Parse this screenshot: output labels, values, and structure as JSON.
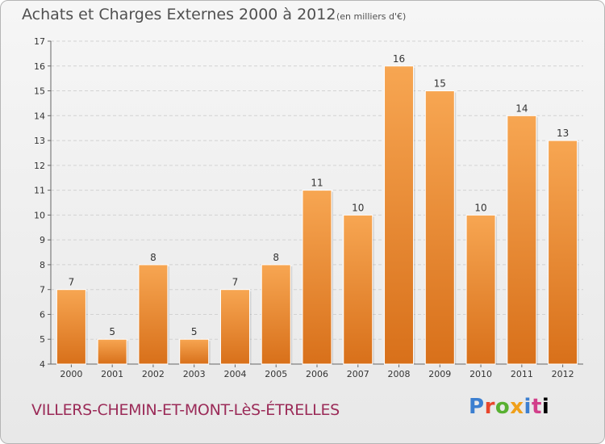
{
  "header": {
    "title": "Achats et Charges Externes 2000 à 2012",
    "unit": "(en milliers d'€)"
  },
  "footer": {
    "commune": "VILLERS-CHEMIN-ET-MONT-LèS-ÉTRELLES",
    "brand": "Proxiti",
    "brand_letters": [
      "P",
      "r",
      "o",
      "x",
      "i",
      "t",
      "i"
    ]
  },
  "chart_data": {
    "type": "bar",
    "categories": [
      "2000",
      "2001",
      "2002",
      "2003",
      "2004",
      "2005",
      "2006",
      "2007",
      "2008",
      "2009",
      "2010",
      "2011",
      "2012"
    ],
    "values": [
      7,
      5,
      8,
      5,
      7,
      8,
      11,
      10,
      16,
      15,
      10,
      14,
      13
    ],
    "ylim": [
      4,
      17
    ],
    "yticks": [
      4,
      5,
      6,
      7,
      8,
      9,
      10,
      11,
      12,
      13,
      14,
      15,
      16,
      17
    ],
    "grid": true,
    "bar_color": "#e87e22",
    "bar_color_light": "#f7a652"
  }
}
